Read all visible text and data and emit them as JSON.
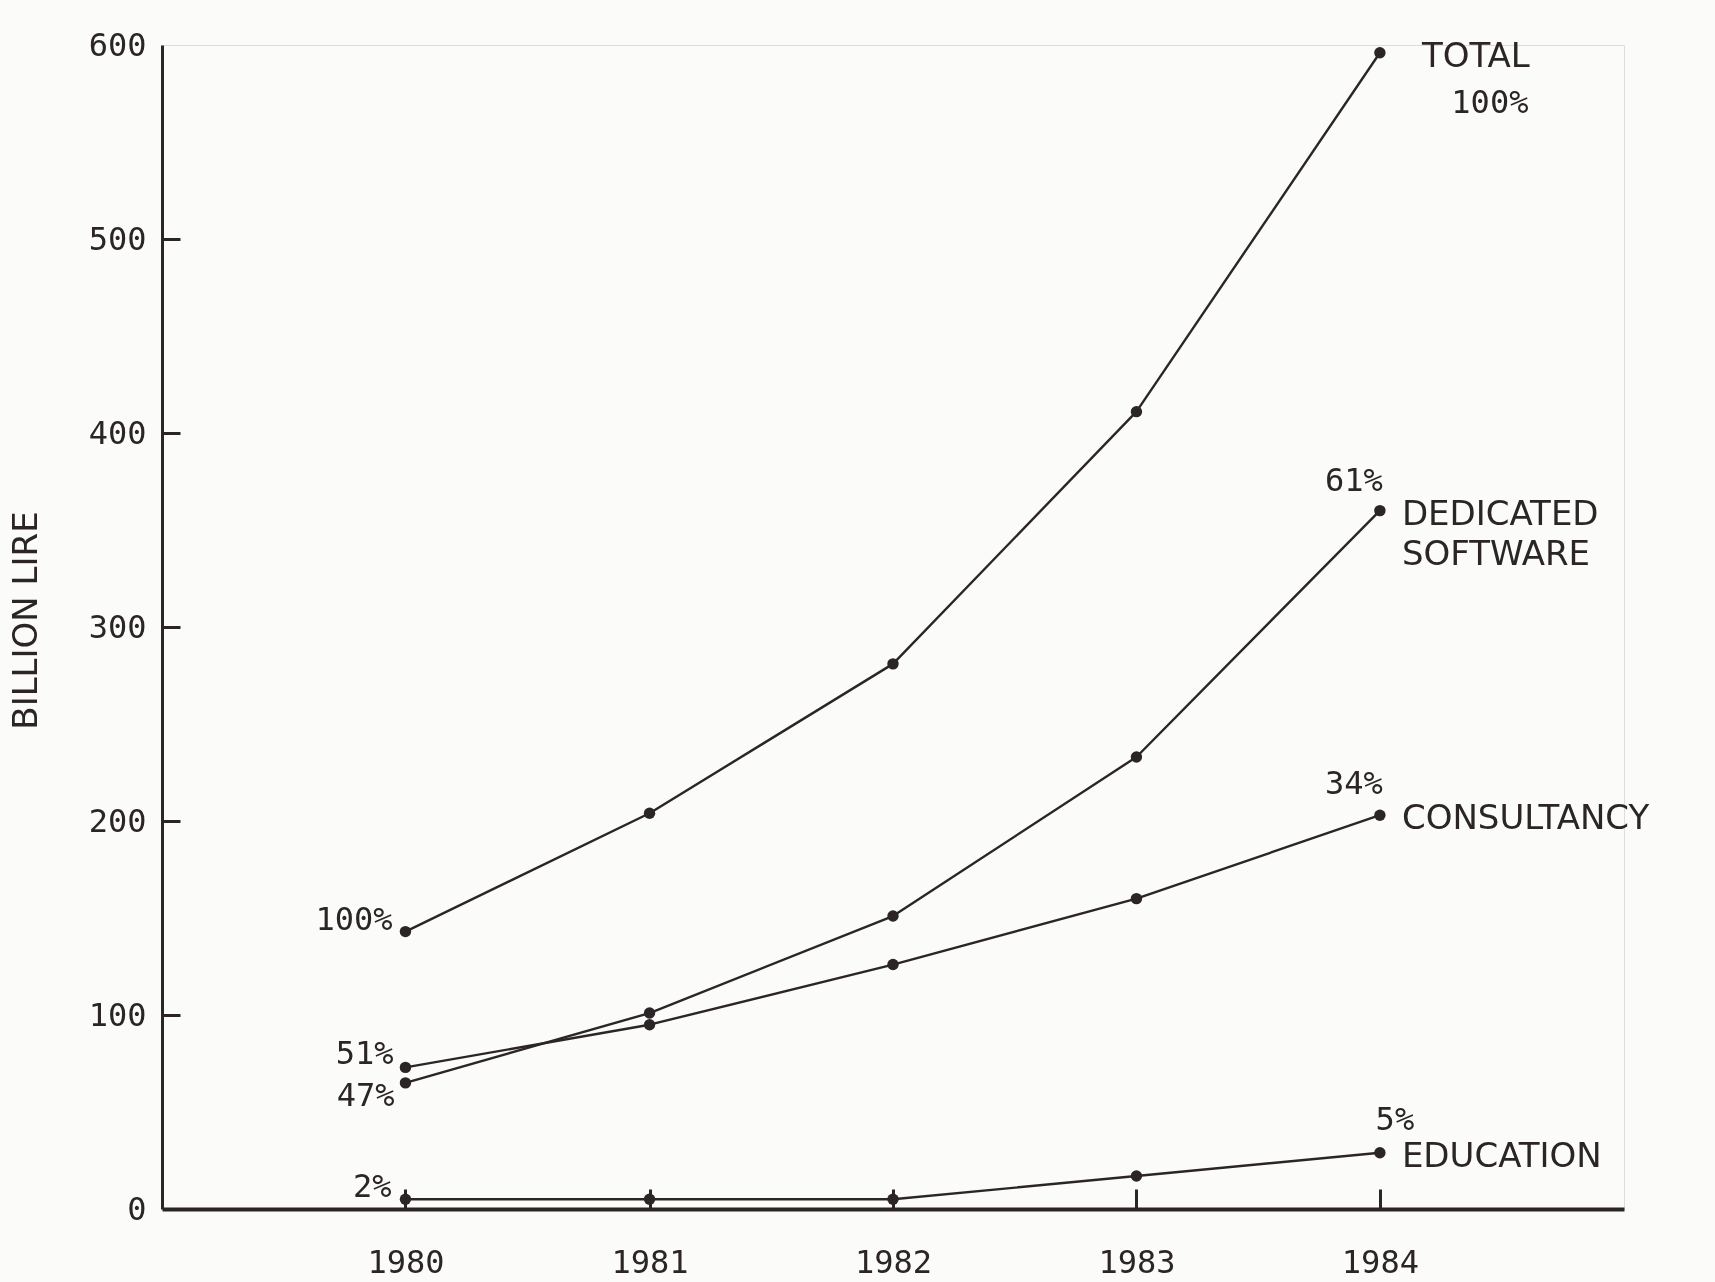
{
  "chart_data": {
    "type": "line",
    "ylabel": "BILLION LIRE",
    "x": [
      "1980",
      "1981",
      "1982",
      "1983",
      "1984"
    ],
    "xlim": [
      "1979",
      "1985"
    ],
    "xticks": [
      "1980",
      "1981",
      "1982",
      "1983",
      "1984"
    ],
    "ylim": [
      0,
      600
    ],
    "yticks": [
      0,
      100,
      200,
      300,
      400,
      500,
      600
    ],
    "marker": "circle",
    "line_style": "solid",
    "legend": false,
    "series": [
      {
        "name": "TOTAL",
        "color": "#2b2527",
        "values": [
          143,
          204,
          281,
          411,
          596
        ]
      },
      {
        "name": "DEDICATED SOFTWARE",
        "color": "#2b2527",
        "values": [
          65,
          101,
          151,
          233,
          360
        ]
      },
      {
        "name": "CONSULTANCY",
        "color": "#2b2527",
        "values": [
          73,
          95,
          126,
          160,
          203
        ]
      },
      {
        "name": "EDUCATION",
        "color": "#2b2527",
        "values": [
          5,
          5,
          5,
          17,
          29
        ]
      }
    ],
    "annotations": [
      {
        "text": "100%",
        "x": "1980",
        "y": 143
      },
      {
        "text": "51%",
        "x": "1980",
        "y": 73
      },
      {
        "text": "47%",
        "x": "1980",
        "y": 65
      },
      {
        "text": "2%",
        "x": "1980",
        "y": 5
      },
      {
        "text": "61%",
        "x": "1984",
        "y": 360
      },
      {
        "text": "34%",
        "x": "1984",
        "y": 203
      },
      {
        "text": "5%",
        "x": "1984",
        "y": 29
      },
      {
        "text": "100%",
        "x": "1984",
        "y": 596
      }
    ]
  }
}
